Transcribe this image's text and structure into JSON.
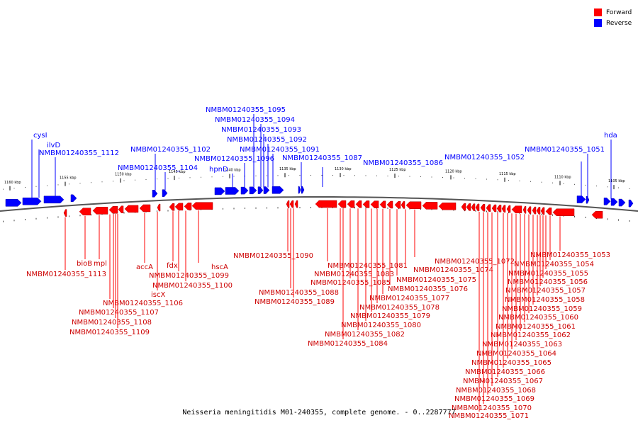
{
  "caption": "Neisseria meningitidis M01-240355, complete genome. - 0..2287777",
  "legend": [
    {
      "label": "Forward",
      "color": "#ff0000"
    },
    {
      "label": "Reverse",
      "color": "#0000ff"
    }
  ],
  "colors": {
    "forward": "#ff0000",
    "reverse": "#0000ff",
    "line": "#808080"
  },
  "ticks": [
    "1160 kbp",
    "1155 kbp",
    "1150 kbp",
    "1145 kbp",
    "1140 kbp",
    "1135 kbp",
    "1130 kbp",
    "1125 kbp",
    "1120 kbp",
    "1115 kbp",
    "1110 kbp",
    "1105 kbp"
  ],
  "reverse_labels": [
    "cysI",
    "ilvD",
    "NMBM01240355_1112",
    "NMBM01240355_1102",
    "NMBM01240355_1104",
    "hpnD",
    "NMBM01240355_1095",
    "NMBM01240355_1094",
    "NMBM01240355_1093",
    "NMBM01240355_1092",
    "NMBM01240355_1091",
    "NMBM01240355_1096",
    "NMBM01240355_1087",
    "NMBM01240355_1086",
    "NMBM01240355_1052",
    "NMBM01240355_1051",
    "hda"
  ],
  "forward_labels": [
    "NMBM01240355_1113",
    "bioB",
    "mpl",
    "NMBM01240355_1106",
    "NMBM01240355_1107",
    "NMBM01240355_1108",
    "NMBM01240355_1109",
    "iscX",
    "accA",
    "fdx",
    "NMBM01240355_1099",
    "NMBM01240355_1100",
    "hscA",
    "NMBM01240355_1090",
    "NMBM01240355_1088",
    "NMBM01240355_1089",
    "NMBM01240355_1081",
    "NMBM01240355_1083",
    "NMBM01240355_1085",
    "NMBM01240355_1082",
    "NMBM01240355_1084",
    "NMBM01240355_1080",
    "NMBM01240355_1079",
    "NMBM01240355_1078",
    "NMBM01240355_1077",
    "NMBM01240355_1076",
    "NMBM01240355_1075",
    "NMBM01240355_1074",
    "NMBM01240355_1072",
    "NMBM01240355_1053",
    "NMBM01240355_1054",
    "NMBM01240355_1055",
    "NMBM01240355_1056",
    "NMBM01240355_1057",
    "NMBM01240355_1058",
    "NMBM01240355_1059",
    "NMBM01240355_1060",
    "NMBM01240355_1061",
    "NMBM01240355_1062",
    "NMBM01240355_1063",
    "NMBM01240355_1064",
    "NMBM01240355_1065",
    "NMBM01240355_1066",
    "NMBM01240355_1067",
    "NMBM01240355_1068",
    "NMBM01240355_1069",
    "NMBM01240355_1070",
    "NMBM01240355_1071"
  ]
}
